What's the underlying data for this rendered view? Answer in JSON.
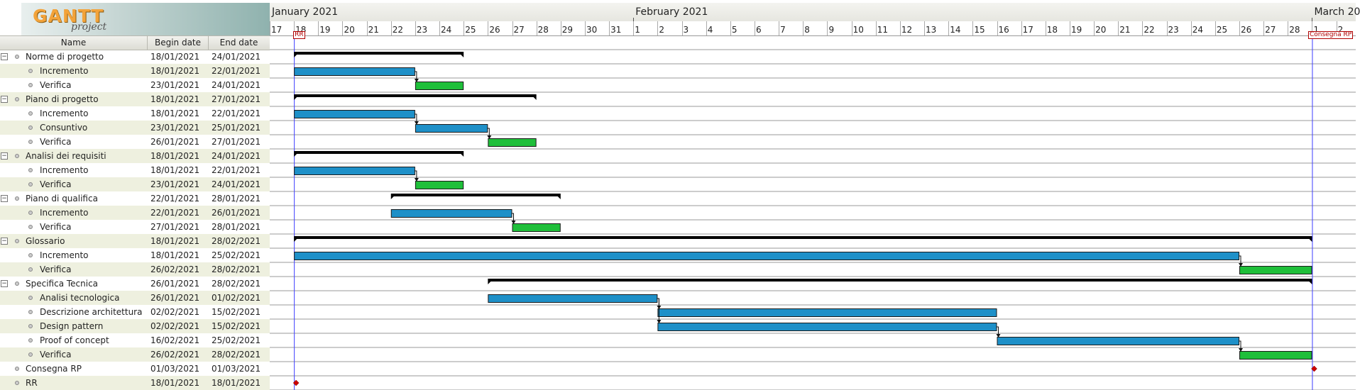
{
  "app": {
    "logo_text": "GANTT",
    "logo_sub": "project"
  },
  "table": {
    "columns": [
      "Name",
      "Begin date",
      "End date"
    ],
    "rows": [
      {
        "name": "Norme di progetto",
        "begin": "18/01/2021",
        "end": "24/01/2021",
        "level": 0,
        "group": true
      },
      {
        "name": "Incremento",
        "begin": "18/01/2021",
        "end": "22/01/2021",
        "level": 1
      },
      {
        "name": "Verifica",
        "begin": "23/01/2021",
        "end": "24/01/2021",
        "level": 1
      },
      {
        "name": "Piano di progetto",
        "begin": "18/01/2021",
        "end": "27/01/2021",
        "level": 0,
        "group": true
      },
      {
        "name": "Incremento",
        "begin": "18/01/2021",
        "end": "22/01/2021",
        "level": 1
      },
      {
        "name": "Consuntivo",
        "begin": "23/01/2021",
        "end": "25/01/2021",
        "level": 1
      },
      {
        "name": "Verifica",
        "begin": "26/01/2021",
        "end": "27/01/2021",
        "level": 1
      },
      {
        "name": "Analisi dei requisiti",
        "begin": "18/01/2021",
        "end": "24/01/2021",
        "level": 0,
        "group": true
      },
      {
        "name": "Incremento",
        "begin": "18/01/2021",
        "end": "22/01/2021",
        "level": 1
      },
      {
        "name": "Verifica",
        "begin": "23/01/2021",
        "end": "24/01/2021",
        "level": 1
      },
      {
        "name": "Piano di qualifica",
        "begin": "22/01/2021",
        "end": "28/01/2021",
        "level": 0,
        "group": true
      },
      {
        "name": "Incremento",
        "begin": "22/01/2021",
        "end": "26/01/2021",
        "level": 1
      },
      {
        "name": "Verifica",
        "begin": "27/01/2021",
        "end": "28/01/2021",
        "level": 1
      },
      {
        "name": "Glossario",
        "begin": "18/01/2021",
        "end": "28/02/2021",
        "level": 0,
        "group": true
      },
      {
        "name": "Incremento",
        "begin": "18/01/2021",
        "end": "25/02/2021",
        "level": 1
      },
      {
        "name": "Verifica",
        "begin": "26/02/2021",
        "end": "28/02/2021",
        "level": 1
      },
      {
        "name": "Specifica Tecnica",
        "begin": "26/01/2021",
        "end": "28/02/2021",
        "level": 0,
        "group": true
      },
      {
        "name": "Analisi tecnologica",
        "begin": "26/01/2021",
        "end": "01/02/2021",
        "level": 1
      },
      {
        "name": "Descrizione architettura",
        "begin": "02/02/2021",
        "end": "15/02/2021",
        "level": 1
      },
      {
        "name": "Design pattern",
        "begin": "02/02/2021",
        "end": "15/02/2021",
        "level": 1
      },
      {
        "name": "Proof of concept",
        "begin": "16/02/2021",
        "end": "25/02/2021",
        "level": 1
      },
      {
        "name": "Verifica",
        "begin": "26/02/2021",
        "end": "28/02/2021",
        "level": 1
      },
      {
        "name": "Consegna RP",
        "begin": "01/03/2021",
        "end": "01/03/2021",
        "level": 0,
        "milestone": true
      },
      {
        "name": "RR",
        "begin": "18/01/2021",
        "end": "18/01/2021",
        "level": 0,
        "milestone": true
      }
    ]
  },
  "timeline": {
    "months": [
      {
        "label": "January 2021",
        "day": 17
      },
      {
        "label": "February 2021",
        "day": 32
      },
      {
        "label": "March 20",
        "day": 60
      }
    ],
    "day_labels": [
      "17",
      "18",
      "19",
      "20",
      "21",
      "22",
      "23",
      "24",
      "25",
      "26",
      "27",
      "28",
      "29",
      "30",
      "31",
      "1",
      "2",
      "3",
      "4",
      "5",
      "6",
      "7",
      "8",
      "9",
      "10",
      "11",
      "12",
      "13",
      "14",
      "15",
      "16",
      "17",
      "18",
      "19",
      "20",
      "21",
      "22",
      "23",
      "24",
      "25",
      "26",
      "27",
      "28",
      "1",
      "2"
    ],
    "milestone_labels": [
      {
        "label": "RR",
        "day": 18
      },
      {
        "label": "Consegna RP",
        "day": 60
      }
    ]
  },
  "tasks": [
    {
      "row": 0,
      "type": "summary",
      "start": 18,
      "end": 25
    },
    {
      "row": 1,
      "type": "work",
      "start": 18,
      "end": 23
    },
    {
      "row": 2,
      "type": "verify",
      "start": 23,
      "end": 25
    },
    {
      "row": 3,
      "type": "summary",
      "start": 18,
      "end": 28
    },
    {
      "row": 4,
      "type": "work",
      "start": 18,
      "end": 23
    },
    {
      "row": 5,
      "type": "work",
      "start": 23,
      "end": 26
    },
    {
      "row": 6,
      "type": "verify",
      "start": 26,
      "end": 28
    },
    {
      "row": 7,
      "type": "summary",
      "start": 18,
      "end": 25
    },
    {
      "row": 8,
      "type": "work",
      "start": 18,
      "end": 23
    },
    {
      "row": 9,
      "type": "verify",
      "start": 23,
      "end": 25
    },
    {
      "row": 10,
      "type": "summary",
      "start": 22,
      "end": 29
    },
    {
      "row": 11,
      "type": "work",
      "start": 22,
      "end": 27
    },
    {
      "row": 12,
      "type": "verify",
      "start": 27,
      "end": 29
    },
    {
      "row": 13,
      "type": "summary",
      "start": 18,
      "end": 60
    },
    {
      "row": 14,
      "type": "work",
      "start": 18,
      "end": 57
    },
    {
      "row": 15,
      "type": "verify",
      "start": 57,
      "end": 60
    },
    {
      "row": 16,
      "type": "summary",
      "start": 26,
      "end": 60
    },
    {
      "row": 17,
      "type": "work",
      "start": 26,
      "end": 33
    },
    {
      "row": 18,
      "type": "work",
      "start": 33,
      "end": 47
    },
    {
      "row": 19,
      "type": "work",
      "start": 33,
      "end": 47
    },
    {
      "row": 20,
      "type": "work",
      "start": 47,
      "end": 57
    },
    {
      "row": 21,
      "type": "verify",
      "start": 57,
      "end": 60
    },
    {
      "row": 22,
      "type": "milestone",
      "start": 60,
      "end": 60
    },
    {
      "row": 23,
      "type": "milestone",
      "start": 18,
      "end": 18
    }
  ],
  "dependencies": [
    [
      1,
      2
    ],
    [
      4,
      5
    ],
    [
      5,
      6
    ],
    [
      8,
      9
    ],
    [
      11,
      12
    ],
    [
      14,
      15
    ],
    [
      17,
      18
    ],
    [
      17,
      19
    ],
    [
      19,
      20
    ],
    [
      20,
      21
    ]
  ],
  "today_markers": [
    18,
    60
  ],
  "colors": {
    "work": "#1e90c8",
    "verify": "#1fbf3a",
    "summary": "#000000",
    "milestone": "#cc0000",
    "marker": "#3c3cff",
    "alt_row": "#eef0df",
    "grid": "#9a9a9a"
  }
}
